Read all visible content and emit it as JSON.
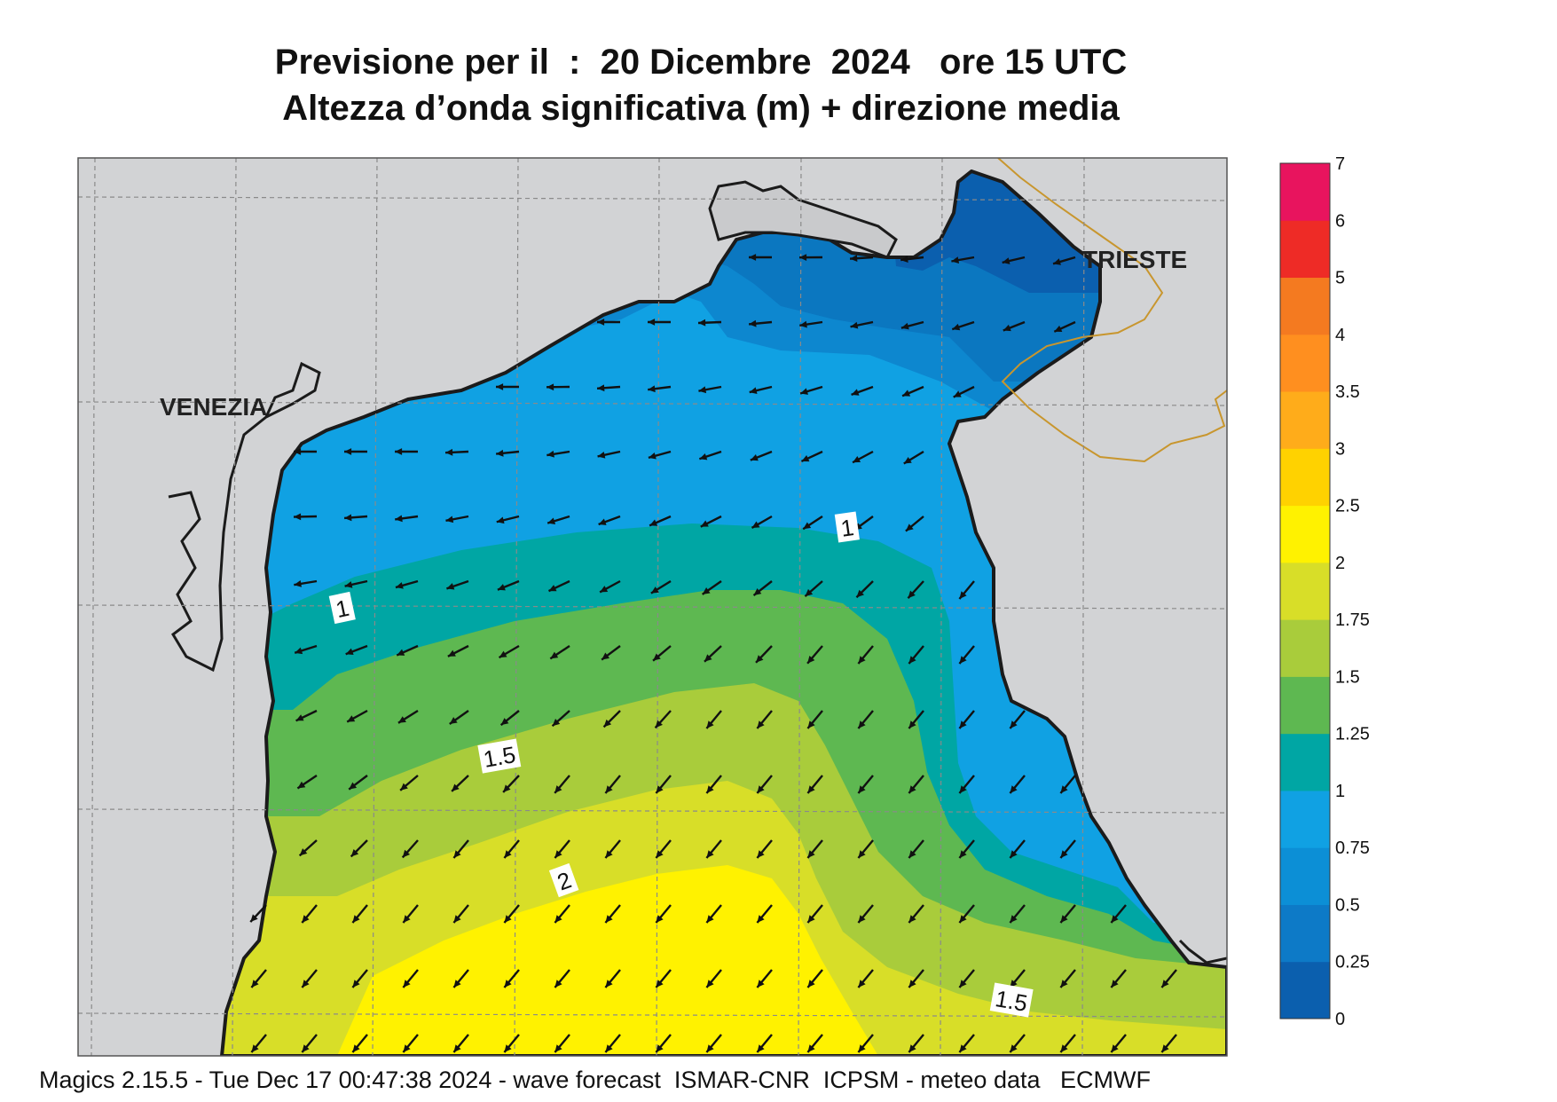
{
  "title": {
    "line1": "Previsione per il  :  20 Dicembre  2024   ore 15 UTC",
    "line2": "Altezza d’onda significativa (m) + direzione media"
  },
  "places": [
    {
      "name": "VENEZIA"
    },
    {
      "name": "TRIESTE"
    }
  ],
  "contour_labels": [
    "1",
    "1",
    "1.5",
    "2",
    "1.5"
  ],
  "legend": {
    "levels": [
      "0",
      "0.25",
      "0.5",
      "0.75",
      "1",
      "1.25",
      "1.5",
      "1.75",
      "2",
      "2.5",
      "3",
      "3.5",
      "4",
      "5",
      "6",
      "7"
    ],
    "colors": [
      "#0b5fae",
      "#0d7ac7",
      "#0c8fd6",
      "#10a1e3",
      "#00a6a4",
      "#5eb851",
      "#a9cc3b",
      "#d8de28",
      "#fff200",
      "#ffd200",
      "#ffac1a",
      "#ff8f1f",
      "#f47a20",
      "#ee2b26",
      "#e8145e"
    ]
  },
  "map": {
    "land_color": "#d2d3d5",
    "border_color": "#c8962e",
    "wave_direction": "south-west"
  },
  "footer": {
    "text": "Magics 2.15.5 - Tue Dec 17 00:47:38 2024 - wave forecast  ISMAR-CNR  ICPSM - meteo data   ECMWF"
  }
}
